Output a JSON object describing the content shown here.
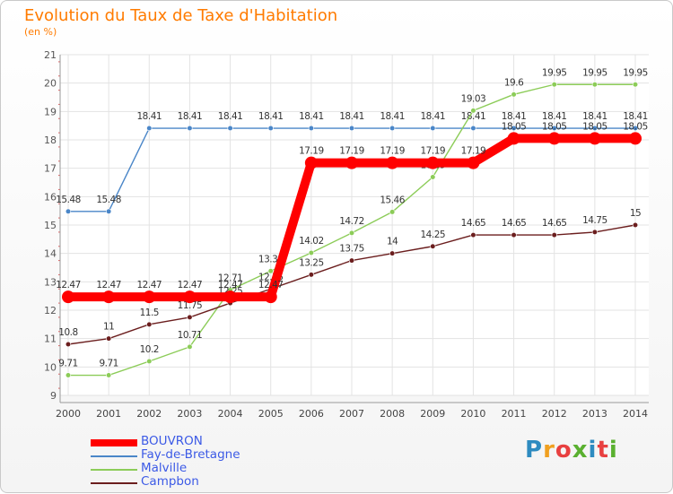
{
  "title": "Evolution du Taux de Taxe d'Habitation",
  "subtitle": "(en %)",
  "logo": {
    "text": "Proxiti",
    "colors": [
      "#2e8bc0",
      "#f0a020",
      "#e84040",
      "#5ab030",
      "#2e8bc0",
      "#e84040",
      "#5ab030"
    ]
  },
  "chart_data": {
    "type": "line",
    "title": "Evolution du Taux de Taxe d'Habitation",
    "ylabel": "(en %)",
    "xlabel": "",
    "ylim": [
      9,
      21
    ],
    "yticks": [
      9,
      10,
      11,
      12,
      13,
      14,
      15,
      16,
      17,
      18,
      19,
      20,
      21
    ],
    "categories": [
      "2000",
      "2001",
      "2002",
      "2003",
      "2004",
      "2005",
      "2006",
      "2007",
      "2008",
      "2009",
      "2010",
      "2011",
      "2012",
      "2013",
      "2014"
    ],
    "grid": true,
    "series": [
      {
        "name": "Fay-de-Bretagne",
        "color": "#4a86c8",
        "thick": false,
        "values": [
          15.48,
          15.48,
          18.41,
          18.41,
          18.41,
          18.41,
          18.41,
          18.41,
          18.41,
          18.41,
          18.41,
          18.41,
          18.41,
          18.41,
          18.41
        ],
        "labels": [
          "15.48",
          "15.48",
          "18.41",
          "18.41",
          "18.41",
          "18.41",
          "18.41",
          "18.41",
          "18.41",
          "18.41",
          "18.41",
          "18.41",
          "18.41",
          "18.41",
          "18.41"
        ]
      },
      {
        "name": "Malville",
        "color": "#8ccc58",
        "thick": false,
        "values": [
          9.71,
          9.71,
          10.2,
          10.71,
          12.71,
          13.38,
          14.02,
          14.72,
          15.46,
          16.69,
          19.03,
          19.6,
          19.95,
          19.95,
          19.95
        ],
        "labels": [
          "9.71",
          "9.71",
          "10.2",
          "10.71",
          "12.71",
          "13.38",
          "14.02",
          "14.72",
          "15.46",
          "16.69",
          "19.03",
          "19.6",
          "19.95",
          "19.95",
          "19.95"
        ]
      },
      {
        "name": "Campbon",
        "color": "#6b1e1e",
        "thick": false,
        "values": [
          10.8,
          11,
          11.5,
          11.75,
          12.25,
          12.75,
          13.25,
          13.75,
          14,
          14.25,
          14.65,
          14.65,
          14.65,
          14.75,
          15
        ],
        "labels": [
          "10.8",
          "11",
          "11.5",
          "11.75",
          "12.25",
          "12.75",
          "13.25",
          "13.75",
          "14",
          "14.25",
          "14.65",
          "14.65",
          "14.65",
          "14.75",
          "15"
        ]
      },
      {
        "name": "BOUVRON",
        "color": "#ff0000",
        "thick": true,
        "values": [
          12.47,
          12.47,
          12.47,
          12.47,
          12.47,
          12.47,
          17.19,
          17.19,
          17.19,
          17.19,
          17.19,
          18.05,
          18.05,
          18.05,
          18.05
        ],
        "labels": [
          "12.47",
          "12.47",
          "12.47",
          "12.47",
          "12.47",
          "12.47",
          "17.19",
          "17.19",
          "17.19",
          "17.19",
          "17.19",
          "18.05",
          "18.05",
          "18.05",
          "18.05"
        ]
      }
    ]
  },
  "legend": [
    {
      "label": "BOUVRON",
      "color": "#ff0000"
    },
    {
      "label": "Fay-de-Bretagne",
      "color": "#4a86c8"
    },
    {
      "label": "Malville",
      "color": "#8ccc58"
    },
    {
      "label": "Campbon",
      "color": "#6b1e1e"
    }
  ]
}
